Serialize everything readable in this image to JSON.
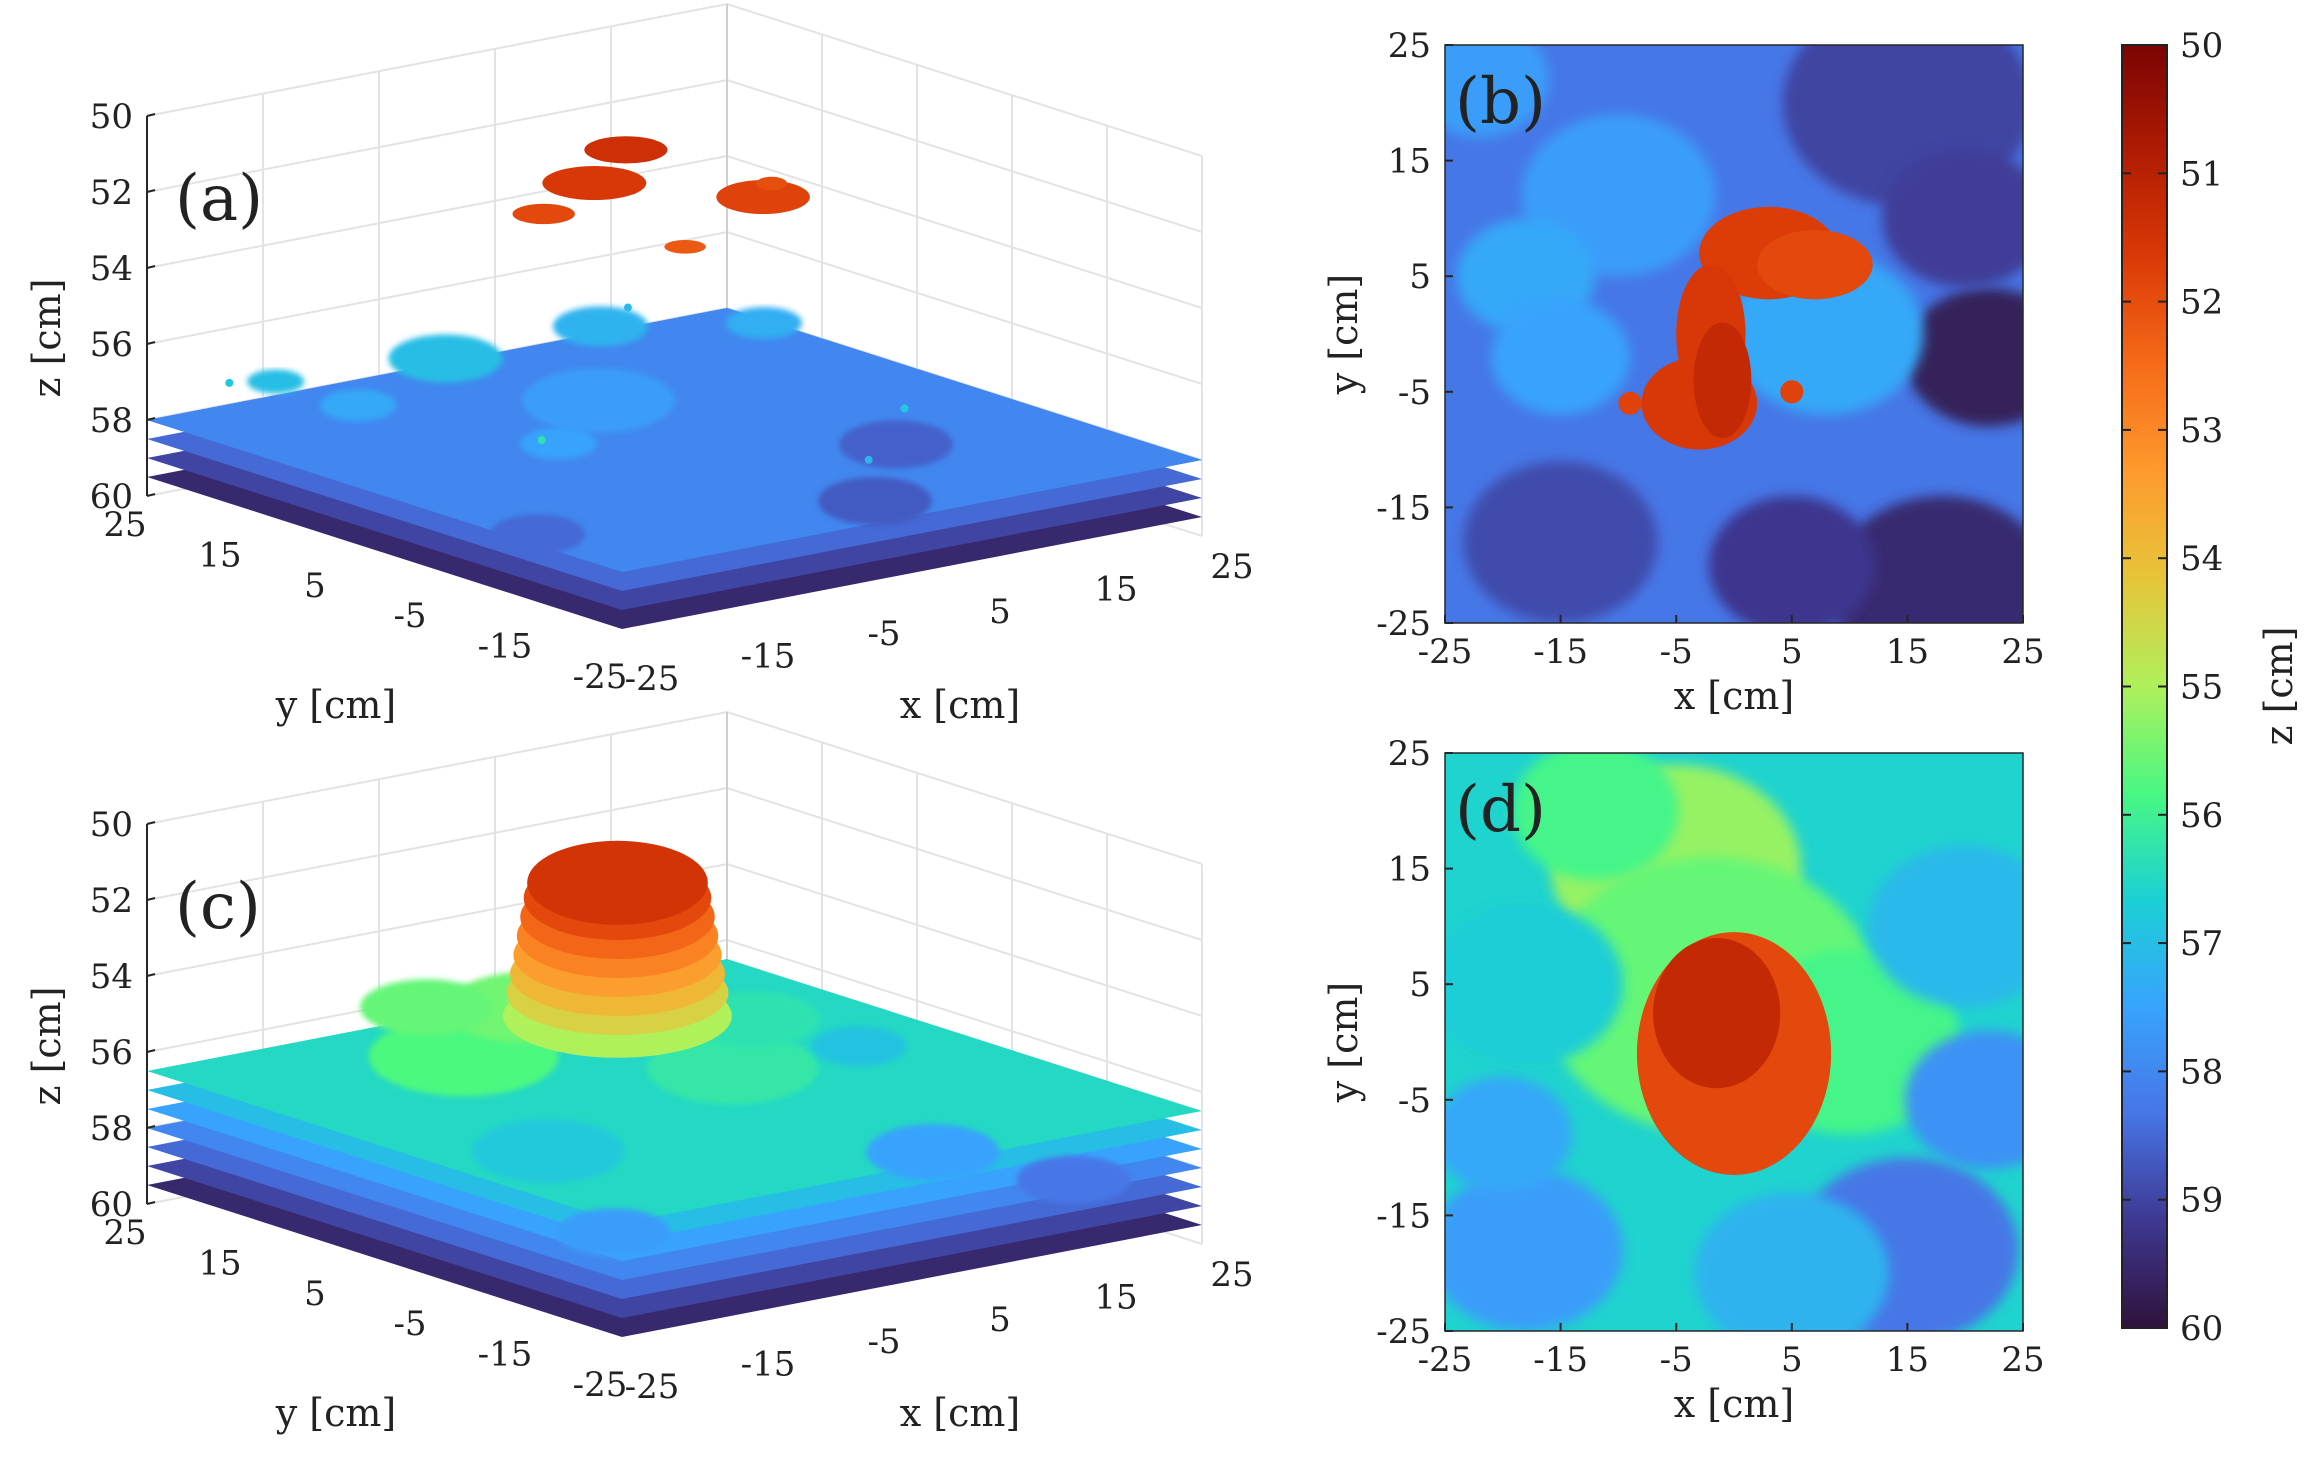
{
  "chart_data": [
    {
      "type": "scatter3d",
      "panel_label": "(a)",
      "xlabel": "x [cm]",
      "ylabel": "y [cm]",
      "zlabel": "z [cm]",
      "x_ticks": [
        "-25",
        "-15",
        "-5",
        "5",
        "15",
        "25"
      ],
      "y_ticks": [
        "25",
        "15",
        "5",
        "-5",
        "-15",
        "-25"
      ],
      "z_ticks": [
        "50",
        "52",
        "54",
        "56",
        "58",
        "60"
      ],
      "xlim": [
        -25,
        25
      ],
      "ylim": [
        -25,
        25
      ],
      "zlim": [
        50,
        60
      ],
      "z_direction": "reversed",
      "floor_layers_z": [
        59.5,
        59.0,
        58.5,
        58.0
      ],
      "surface_level_z": 58.0,
      "object_top_z": 51.5,
      "object_center": [
        0,
        5
      ]
    },
    {
      "type": "heatmap",
      "panel_label": "(b)",
      "xlabel": "x [cm]",
      "ylabel": "y [cm]",
      "x_ticks": [
        "-25",
        "-15",
        "-5",
        "5",
        "15",
        "25"
      ],
      "y_ticks": [
        "25",
        "15",
        "5",
        "-5",
        "-15",
        "-25"
      ],
      "xlim": [
        -25,
        25
      ],
      "ylim": [
        -25,
        25
      ],
      "background_z": 58.3,
      "object_z": 51.6
    },
    {
      "type": "scatter3d",
      "panel_label": "(c)",
      "xlabel": "x [cm]",
      "ylabel": "y [cm]",
      "zlabel": "z [cm]",
      "x_ticks": [
        "-25",
        "-15",
        "-5",
        "5",
        "15",
        "25"
      ],
      "y_ticks": [
        "25",
        "15",
        "5",
        "-5",
        "-15",
        "-25"
      ],
      "z_ticks": [
        "50",
        "52",
        "54",
        "56",
        "58",
        "60"
      ],
      "xlim": [
        -25,
        25
      ],
      "ylim": [
        -25,
        25
      ],
      "zlim": [
        50,
        60
      ],
      "z_direction": "reversed",
      "floor_layers_z": [
        59.5,
        59.0,
        58.5,
        58.0,
        57.5,
        57.0
      ],
      "surface_level_z": 56.5,
      "object_top_z": 51.5,
      "object_center": [
        0,
        5
      ]
    },
    {
      "type": "heatmap",
      "panel_label": "(d)",
      "xlabel": "x [cm]",
      "ylabel": "y [cm]",
      "x_ticks": [
        "-25",
        "-15",
        "-5",
        "5",
        "15",
        "25"
      ],
      "y_ticks": [
        "25",
        "15",
        "5",
        "-5",
        "-15",
        "-25"
      ],
      "xlim": [
        -25,
        25
      ],
      "ylim": [
        -25,
        25
      ],
      "background_z": 56.6,
      "object_z": 51.7
    }
  ],
  "colorbar": {
    "label": "z [cm]",
    "ticks": [
      "50",
      "51",
      "52",
      "53",
      "54",
      "55",
      "56",
      "57",
      "58",
      "59",
      "60"
    ],
    "range": [
      50,
      60
    ],
    "colormap": "turbo",
    "colors": [
      "#7a0403",
      "#b01b03",
      "#db3a07",
      "#f66b19",
      "#fe9b2d",
      "#e6c53a",
      "#aff05b",
      "#48f882",
      "#1bd0d5",
      "#38a3fd",
      "#4775e6",
      "#3e3891",
      "#30123b"
    ]
  }
}
